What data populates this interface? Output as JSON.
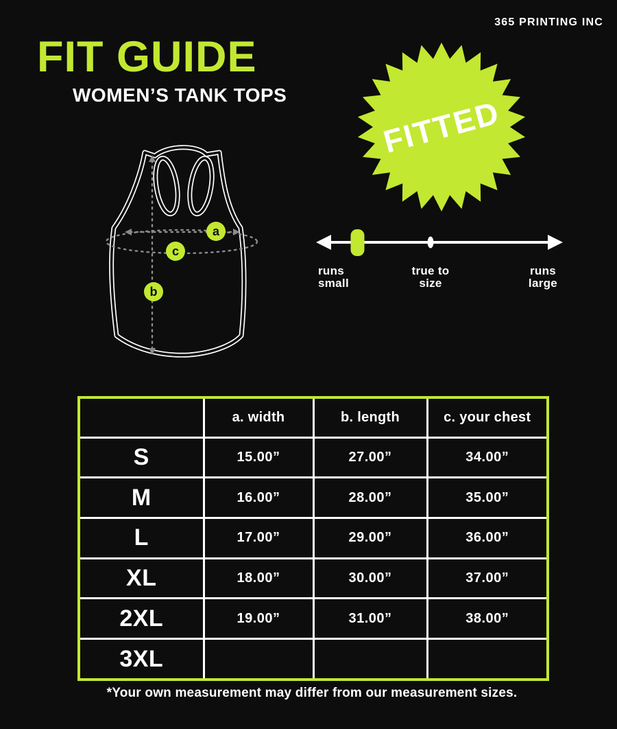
{
  "brand": "365 PRINTING INC",
  "title": "FIT GUIDE",
  "subtitle": "WOMEN’S TANK TOPS",
  "badge": {
    "label": "FITTED"
  },
  "colors": {
    "accent": "#c2e831",
    "background": "#0d0d0d",
    "text": "#ffffff",
    "dash": "#8b8b8b"
  },
  "diagram": {
    "garment": "racerback tank top",
    "points": [
      {
        "label": "a",
        "meaning": "width"
      },
      {
        "label": "b",
        "meaning": "length"
      },
      {
        "label": "c",
        "meaning": "your chest"
      }
    ]
  },
  "fit_scale": {
    "labels": [
      {
        "line1": "runs",
        "line2": "small"
      },
      {
        "line1": "true to",
        "line2": "size"
      },
      {
        "line1": "runs",
        "line2": "large"
      }
    ],
    "indicator_position": "runs small"
  },
  "table": {
    "headers": [
      "",
      "a. width",
      "b. length",
      "c. your chest"
    ],
    "rows": [
      {
        "size": "S",
        "width": "15.00”",
        "length": "27.00”",
        "chest": "34.00”"
      },
      {
        "size": "M",
        "width": "16.00”",
        "length": "28.00”",
        "chest": "35.00”"
      },
      {
        "size": "L",
        "width": "17.00”",
        "length": "29.00”",
        "chest": "36.00”"
      },
      {
        "size": "XL",
        "width": "18.00”",
        "length": "30.00”",
        "chest": "37.00”"
      },
      {
        "size": "2XL",
        "width": "19.00”",
        "length": "31.00”",
        "chest": "38.00”"
      },
      {
        "size": "3XL",
        "width": "",
        "length": "",
        "chest": ""
      }
    ]
  },
  "footnote": "*Your own measurement may differ from our measurement sizes."
}
